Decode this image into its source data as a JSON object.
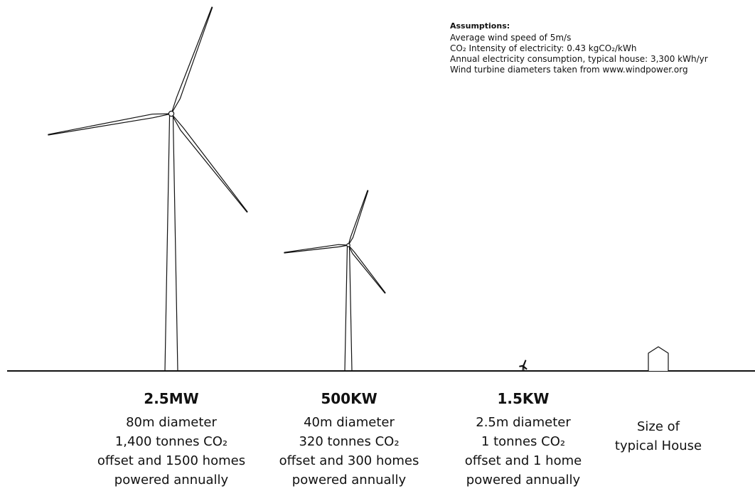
{
  "assumptions": {
    "title": "Assumptions:",
    "lines": [
      "Average wind speed of 5m/s",
      "CO₂ Intensity of electricity: 0.43 kgCO₂/kWh",
      "Annual electricity consumption, typical house: 3,300 kWh/yr",
      "Wind turbine diameters taken from www.windpower.org"
    ]
  },
  "items": [
    {
      "power": "2.5MW",
      "lines": [
        "80m diameter",
        "1,400 tonnes CO₂",
        "offset and 1500 homes",
        "powered annually"
      ]
    },
    {
      "power": "500KW",
      "lines": [
        "40m diameter",
        "320 tonnes CO₂",
        "offset and 300 homes",
        "powered annually"
      ]
    },
    {
      "power": "1.5KW",
      "lines": [
        "2.5m diameter",
        "1 tonnes CO₂",
        "offset and 1 home",
        "powered annually"
      ]
    },
    {
      "lines": [
        "Size of",
        "typical House"
      ]
    }
  ]
}
